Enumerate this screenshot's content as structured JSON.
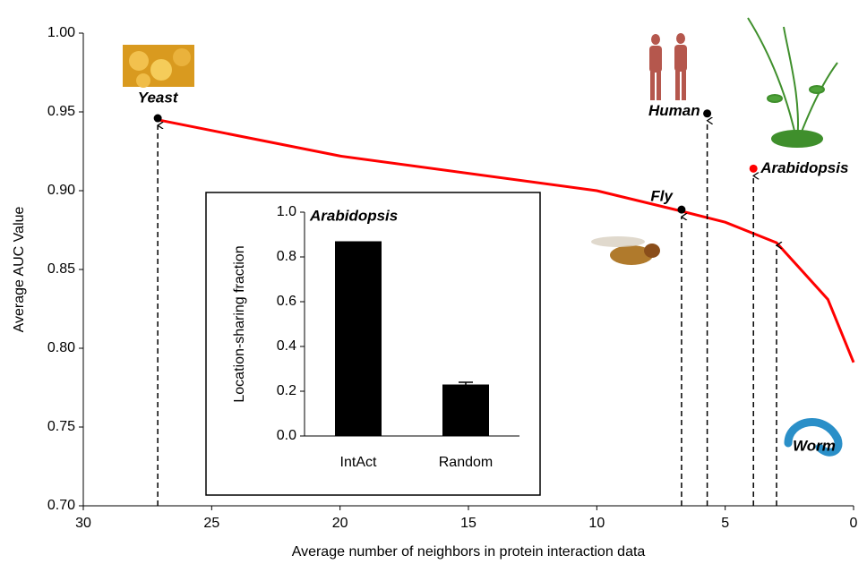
{
  "chart_data": [
    {
      "type": "line",
      "x_label": "Average number of neighbors in protein interaction data",
      "y_label": "Average AUC Value",
      "x": [
        27.1,
        20,
        10,
        6.7,
        5,
        3,
        1,
        0
      ],
      "values": [
        0.945,
        0.922,
        0.9,
        0.887,
        0.88,
        0.867,
        0.831,
        0.791
      ],
      "color": "#ff0000",
      "xlim": [
        30,
        0
      ],
      "xticks": [
        30,
        25,
        20,
        15,
        10,
        5,
        0
      ],
      "ylim": [
        0.7,
        1.0
      ],
      "yticks": [
        {
          "value": 0.7,
          "label": "0.70"
        },
        {
          "value": 0.75,
          "label": "0.75"
        },
        {
          "value": 0.8,
          "label": "0.80"
        },
        {
          "value": 0.85,
          "label": "0.85"
        },
        {
          "value": 0.9,
          "label": "0.90"
        },
        {
          "value": 0.95,
          "label": "0.95"
        },
        {
          "value": 1.0,
          "label": "1.00"
        }
      ],
      "points": [
        {
          "label": "Yeast",
          "x": 27.1,
          "y": 0.946,
          "color": "#000000",
          "dot": true
        },
        {
          "label": "Human",
          "x": 5.7,
          "y": 0.949,
          "color": "#000000",
          "dot": true
        },
        {
          "label": "Arabidopsis",
          "x": 3.9,
          "y": 0.914,
          "color": "#ff0000",
          "dot": true
        },
        {
          "label": "Fly",
          "x": 6.7,
          "y": 0.888,
          "color": "#000000",
          "dot": true
        },
        {
          "label": "Worm",
          "x": 3.0,
          "y": 0.867,
          "color": "#000000",
          "dot": false
        }
      ]
    },
    {
      "type": "bar",
      "title": "Arabidopsis",
      "y_label": "Location-sharing fraction",
      "categories": [
        "IntAct",
        "Random"
      ],
      "values": [
        0.87,
        0.23
      ],
      "errors": [
        null,
        0.01
      ],
      "color": "#000000",
      "ylim": [
        0,
        1.0
      ],
      "yticks": [
        {
          "value": 0,
          "label": "0.0"
        },
        0.2,
        0.4,
        0.6,
        0.8,
        {
          "value": 1.0,
          "label": "1.0"
        }
      ]
    }
  ]
}
